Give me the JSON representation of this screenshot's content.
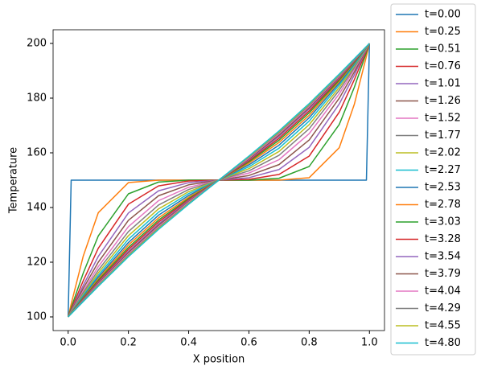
{
  "chart_data": {
    "type": "line",
    "xlabel": "X position",
    "ylabel": "Temperature",
    "x": [
      0,
      0.01,
      0.05,
      0.1,
      0.2,
      0.3,
      0.4,
      0.5,
      0.6,
      0.7,
      0.8,
      0.9,
      0.95,
      0.99,
      1
    ],
    "xlim": [
      -0.05,
      1.05
    ],
    "xticks": [
      {
        "value": 0,
        "label": "0.0"
      },
      0.2,
      0.4,
      0.6,
      0.8,
      {
        "value": 1,
        "label": "1.0"
      }
    ],
    "ylim": [
      95,
      205
    ],
    "yticks": [
      100,
      120,
      140,
      160,
      180,
      200
    ],
    "grid": false,
    "legend": "outside right",
    "series": [
      {
        "name": "t=0.00",
        "color": "#1f77b4",
        "values": [
          100,
          150,
          150,
          150,
          150,
          150,
          150,
          150,
          150,
          150,
          150,
          150,
          150,
          150,
          200
        ]
      },
      {
        "name": "t=0.25",
        "color": "#ff7f0e",
        "values": [
          100,
          104.7,
          122.2,
          138.1,
          149.1,
          150,
          150,
          150,
          150,
          150,
          150.9,
          161.9,
          177.8,
          195.3,
          200
        ]
      },
      {
        "name": "t=0.51",
        "color": "#2ca02c",
        "values": [
          100,
          103.3,
          116,
          129.6,
          145,
          149.3,
          150,
          150,
          150,
          150.7,
          155,
          170.4,
          184,
          196.7,
          200
        ]
      },
      {
        "name": "t=0.76",
        "color": "#d62728",
        "values": [
          100,
          102.7,
          113.2,
          125.1,
          141.2,
          147.9,
          149.7,
          150,
          150.3,
          152.1,
          158.8,
          174.9,
          186.8,
          197.3,
          200
        ]
      },
      {
        "name": "t=1.01",
        "color": "#9467bd",
        "values": [
          100,
          102.3,
          111.5,
          122.1,
          138,
          146.1,
          149.1,
          150,
          150.9,
          153.9,
          162,
          177.9,
          188.5,
          197.7,
          200
        ]
      },
      {
        "name": "t=1.26",
        "color": "#8c564b",
        "values": [
          100,
          102.1,
          110.4,
          120,
          135.3,
          144.3,
          148.3,
          150,
          151.7,
          155.7,
          164.7,
          180,
          189.6,
          197.9,
          200
        ]
      },
      {
        "name": "t=1.52",
        "color": "#e377c2",
        "values": [
          100,
          101.9,
          109.4,
          118.4,
          133,
          142.5,
          147.4,
          150,
          152.6,
          157.5,
          167,
          181.6,
          190.6,
          198.1,
          200
        ]
      },
      {
        "name": "t=1.77",
        "color": "#7f7f7f",
        "values": [
          100,
          101.8,
          108.8,
          117.1,
          131.2,
          140.9,
          146.6,
          150,
          153.4,
          159.1,
          168.8,
          182.9,
          191.2,
          198.2,
          200
        ]
      },
      {
        "name": "t=2.02",
        "color": "#bcbd22",
        "values": [
          100,
          101.7,
          108.2,
          116.1,
          129.7,
          139.5,
          145.8,
          150,
          154.2,
          160.5,
          170.3,
          183.9,
          191.8,
          198.3,
          200
        ]
      },
      {
        "name": "t=2.27",
        "color": "#17becf",
        "values": [
          100,
          101.6,
          107.8,
          115.2,
          128.4,
          138.3,
          145.1,
          150,
          154.9,
          161.7,
          171.6,
          184.8,
          192.2,
          198.4,
          200
        ]
      },
      {
        "name": "t=2.53",
        "color": "#1f77b4",
        "values": [
          100,
          101.5,
          107.4,
          114.5,
          127.2,
          137.2,
          144.4,
          150,
          155.6,
          162.8,
          172.8,
          185.5,
          192.6,
          198.5,
          200
        ]
      },
      {
        "name": "t=2.78",
        "color": "#ff7f0e",
        "values": [
          100,
          101.4,
          107,
          113.9,
          126.3,
          136.2,
          143.8,
          150,
          156.2,
          163.8,
          173.7,
          186.1,
          193,
          198.6,
          200
        ]
      },
      {
        "name": "t=3.03",
        "color": "#2ca02c",
        "values": [
          100,
          101.4,
          106.8,
          113.4,
          125.4,
          135.4,
          143.3,
          150,
          156.7,
          164.6,
          174.6,
          186.6,
          193.2,
          198.6,
          200
        ]
      },
      {
        "name": "t=3.28",
        "color": "#d62728",
        "values": [
          100,
          101.3,
          106.5,
          112.9,
          124.7,
          134.7,
          142.9,
          150,
          157.1,
          165.3,
          175.3,
          187.1,
          193.5,
          198.7,
          200
        ]
      },
      {
        "name": "t=3.54",
        "color": "#9467bd",
        "values": [
          100,
          101.3,
          106.3,
          112.5,
          124,
          134,
          142.5,
          150,
          157.5,
          166,
          176,
          187.5,
          193.7,
          198.7,
          200
        ]
      },
      {
        "name": "t=3.79",
        "color": "#8c564b",
        "values": [
          100,
          101.2,
          106.1,
          112.2,
          123.5,
          133.5,
          142.2,
          150,
          157.8,
          166.5,
          176.5,
          187.8,
          193.9,
          198.8,
          200
        ]
      },
      {
        "name": "t=4.04",
        "color": "#e377c2",
        "values": [
          100,
          101.2,
          106,
          111.9,
          123,
          133,
          141.9,
          150,
          158.1,
          167,
          177,
          188.1,
          194,
          198.8,
          200
        ]
      },
      {
        "name": "t=4.29",
        "color": "#7f7f7f",
        "values": [
          100,
          101.2,
          105.9,
          111.6,
          122.6,
          132.6,
          141.6,
          150,
          158.4,
          167.4,
          177.4,
          188.4,
          194.1,
          198.8,
          200
        ]
      },
      {
        "name": "t=4.55",
        "color": "#bcbd22",
        "values": [
          100,
          101.2,
          105.7,
          111.4,
          122.3,
          132.3,
          141.4,
          150,
          158.6,
          167.7,
          177.7,
          188.6,
          194.3,
          198.8,
          200
        ]
      },
      {
        "name": "t=4.80",
        "color": "#17becf",
        "values": [
          100,
          101.1,
          105.6,
          111.2,
          122,
          132,
          141.2,
          150,
          158.8,
          168,
          178,
          188.8,
          194.4,
          198.9,
          200
        ]
      }
    ]
  }
}
